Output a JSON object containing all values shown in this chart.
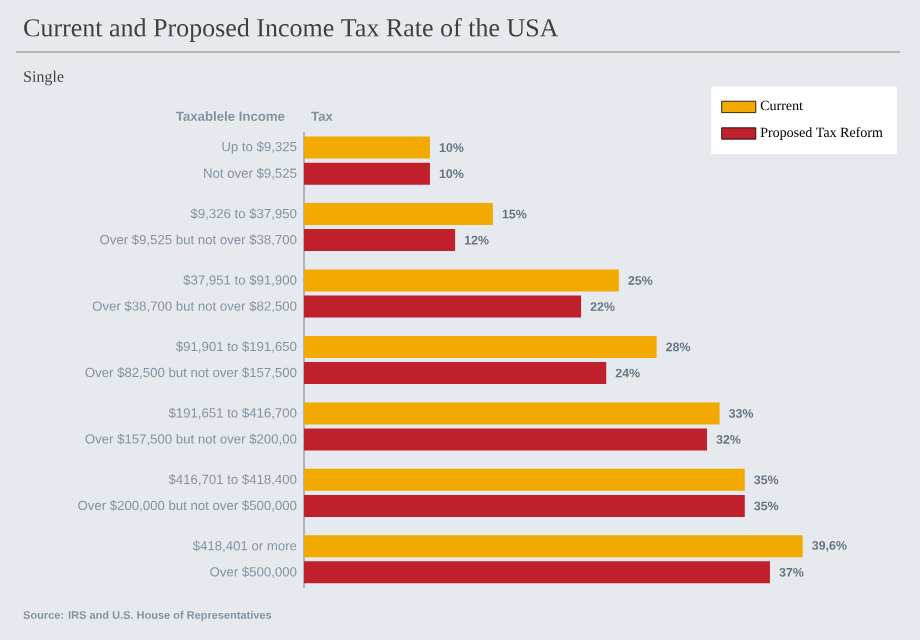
{
  "chart_data": {
    "type": "bar",
    "orientation": "horizontal",
    "title": "Current and Proposed Income Tax Rate of the USA",
    "subtitle": "Single",
    "ylabel": "Taxablele Income",
    "xlabel": "Tax",
    "categories": [
      "Up to $9,325",
      "Not over $9,525",
      "$9,326 to $37,950",
      "Over $9,525 but not over $38,700",
      "$37,951 to $91,900",
      "Over $38,700 but not over $82,500",
      "$91,901 to $191,650",
      "Over $82,500 but not over $157,500",
      "$191,651 to $416,700",
      "Over $157,500 but not over $200,00",
      "$416,701 to $418,400",
      "Over $200,000 but not over $500,000",
      "$418,401 or more",
      "Over $500,000"
    ],
    "series": [
      {
        "name": "Current",
        "color": "#f2a900",
        "values": [
          10,
          null,
          15,
          null,
          25,
          null,
          28,
          null,
          33,
          null,
          35,
          null,
          39.6,
          null
        ],
        "value_labels": [
          "10%",
          null,
          "15%",
          null,
          "25%",
          null,
          "28%",
          null,
          "33%",
          null,
          "35%",
          null,
          "39,6%",
          null
        ]
      },
      {
        "name": "Proposed Tax Reform",
        "color": "#c0202c",
        "values": [
          null,
          10,
          null,
          12,
          null,
          22,
          null,
          24,
          null,
          32,
          null,
          35,
          null,
          37
        ],
        "value_labels": [
          null,
          "10%",
          null,
          "12%",
          null,
          "22%",
          null,
          "24%",
          null,
          "32%",
          null,
          "35%",
          null,
          "37%"
        ]
      }
    ],
    "legend": "top right",
    "annotations": [
      "Source: IRS and U.S. House of Representatives"
    ]
  }
}
